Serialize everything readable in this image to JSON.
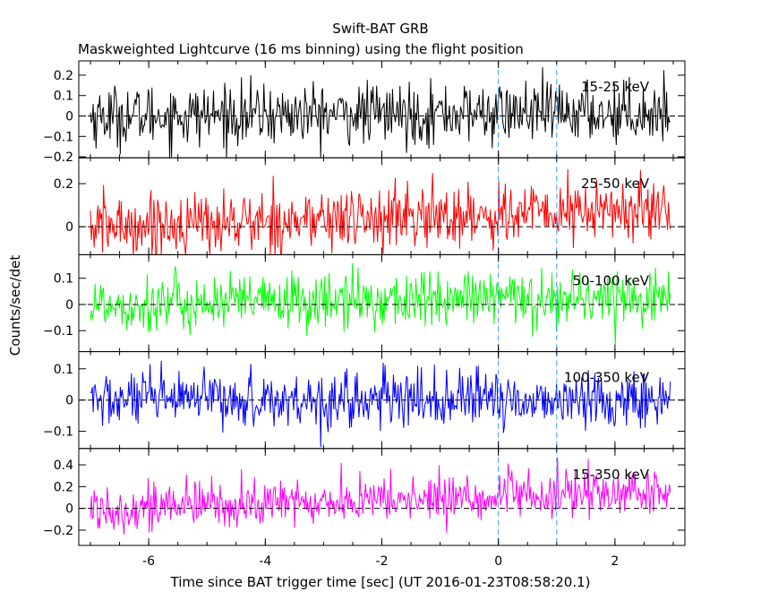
{
  "chart_data": {
    "type": "line",
    "title": "Swift-BAT GRB",
    "subtitle": "Maskweighted Lightcurve (16 ms binning) using the flight position",
    "xlabel": "Time since BAT trigger time [sec] (UT 2016-01-23T08:58:20.1)",
    "ylabel": "Counts/sec/det",
    "xlim": [
      -7.2,
      3.2
    ],
    "x_ticks": [
      "-6",
      "-4",
      "-2",
      "0",
      "2"
    ],
    "x_tick_values": [
      -6,
      -4,
      -2,
      0,
      2
    ],
    "data_range_x": [
      -7.0,
      2.95
    ],
    "markers_x": [
      0,
      1.0
    ],
    "grid": false,
    "series": [
      {
        "name": "15-25 keV",
        "color": "#000000",
        "ylim": [
          -0.205,
          0.27
        ],
        "y_ticks": [
          "0.2",
          "0.1",
          "0",
          "−0.1",
          "−0.2"
        ],
        "y_tick_values": [
          0.2,
          0.1,
          0,
          -0.1,
          -0.2
        ],
        "mean_start": 0.0,
        "mean_end": 0.02,
        "noise": 0.075
      },
      {
        "name": "25-50 keV",
        "color": "#ff0000",
        "ylim": [
          -0.13,
          0.32
        ],
        "y_ticks": [
          "0.2",
          "0"
        ],
        "y_tick_values": [
          0.2,
          0
        ],
        "mean_start": 0.0,
        "mean_end": 0.08,
        "noise": 0.075
      },
      {
        "name": "50-100 keV",
        "color": "#00ff00",
        "ylim": [
          -0.18,
          0.19
        ],
        "y_ticks": [
          "0.1",
          "0",
          "−0.1"
        ],
        "y_tick_values": [
          0.1,
          0,
          -0.1
        ],
        "mean_start": 0.0,
        "mean_end": 0.03,
        "noise": 0.055
      },
      {
        "name": "100-350 keV",
        "color": "#0000ff",
        "ylim": [
          -0.155,
          0.155
        ],
        "y_ticks": [
          "0.1",
          "0",
          "−0.1"
        ],
        "y_tick_values": [
          0.1,
          0,
          -0.1
        ],
        "mean_start": 0.0,
        "mean_end": 0.0,
        "noise": 0.045
      },
      {
        "name": "15-350 keV",
        "color": "#ff00ff",
        "ylim": [
          -0.34,
          0.55
        ],
        "y_ticks": [
          "0.4",
          "0.2",
          "0",
          "−0.2"
        ],
        "y_tick_values": [
          0.4,
          0.2,
          0,
          -0.2
        ],
        "mean_start": 0.0,
        "mean_end": 0.15,
        "noise": 0.11
      }
    ]
  }
}
